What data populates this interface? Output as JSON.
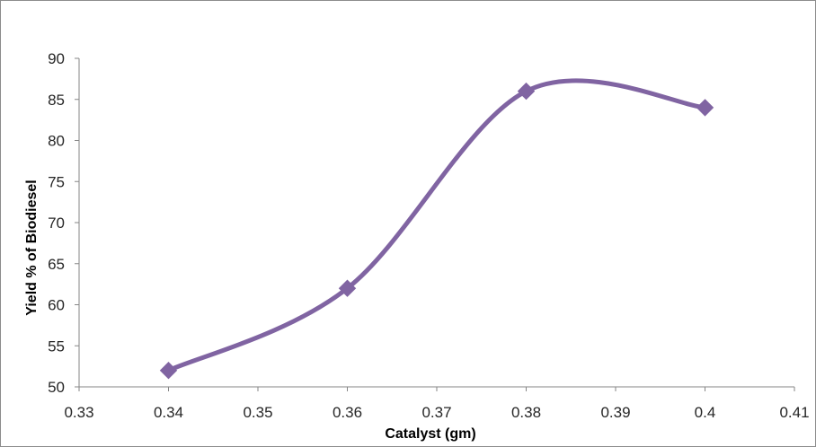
{
  "chart_data": {
    "type": "line",
    "title": "",
    "xlabel": "Catalyst (gm)",
    "ylabel": "Yield % of Biodiesel",
    "xlim": [
      0.33,
      0.41
    ],
    "ylim": [
      50,
      90
    ],
    "x_ticks": [
      "0.33",
      "0.34",
      "0.35",
      "0.36",
      "0.37",
      "0.38",
      "0.39",
      "0.4",
      "0.41"
    ],
    "y_ticks": [
      "50",
      "55",
      "60",
      "65",
      "70",
      "75",
      "80",
      "85",
      "90"
    ],
    "smooth": true,
    "grid": false,
    "legend": "none",
    "series": [
      {
        "color": "#8064a2",
        "marker": "diamond",
        "x": [
          0.34,
          0.36,
          0.38,
          0.4
        ],
        "y": [
          52,
          62,
          86,
          84
        ]
      }
    ]
  }
}
